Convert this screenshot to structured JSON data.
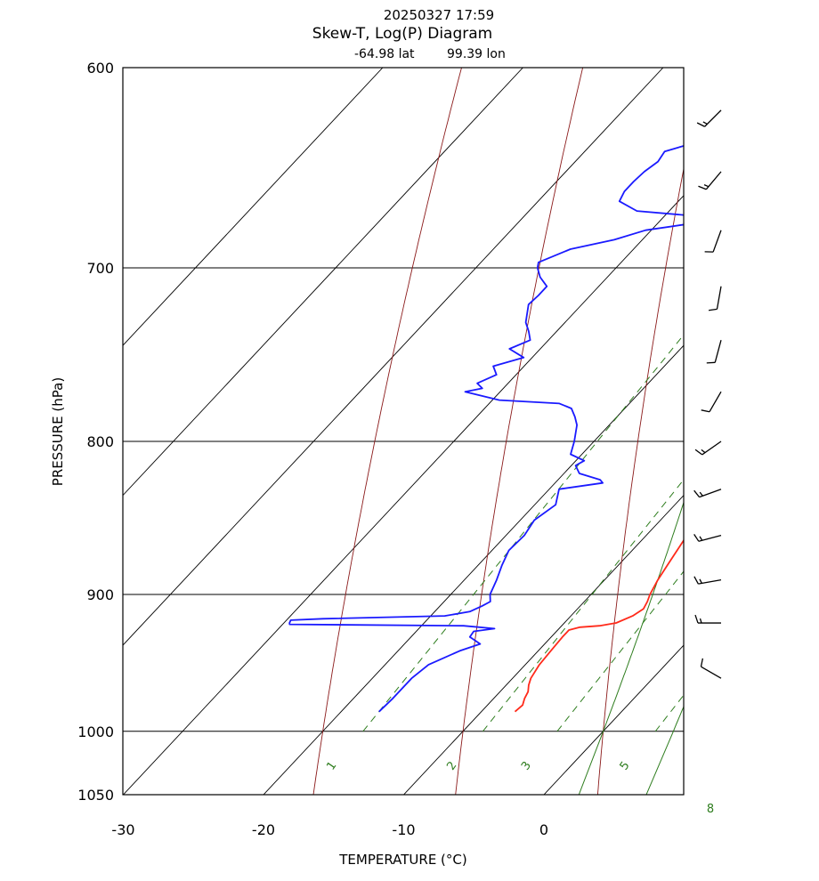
{
  "header": {
    "datetime": "20250327 17:59",
    "title": "Skew-T, Log(P) Diagram",
    "lat_text": "-64.98 lat",
    "lon_text": "99.39 lon"
  },
  "colors": {
    "temperature": "#ff2a1a",
    "dewpoint": "#1a1aff",
    "isotherm": "#000000",
    "dry_adiabat": "#8b1a1a",
    "moist_adiabat": "#2e7d1e",
    "mixing_ratio": "#2e7d1e",
    "wind_barb": "#000000"
  },
  "chart_data": {
    "type": "line",
    "title": "Skew-T, Log(P) Diagram",
    "xlabel": "TEMPERATURE (°C)",
    "ylabel": "PRESSURE  (hPa)",
    "x_ticks": [
      "-30",
      "-20",
      "-10",
      "0"
    ],
    "x_tick_values": [
      -30,
      -20,
      -10,
      0
    ],
    "y_ticks": [
      "600",
      "700",
      "800",
      "900",
      "1000",
      "1050"
    ],
    "y_tick_values": [
      600,
      700,
      800,
      900,
      1000,
      1050
    ],
    "xlim": [
      -30,
      10
    ],
    "ylim": [
      1050,
      600
    ],
    "y_scale": "log",
    "mixing_ratio_labels": [
      "1",
      "2",
      "3",
      "5",
      "8"
    ],
    "mixing_ratio_values": [
      1,
      2,
      3,
      5,
      8
    ],
    "isotherms": [
      -60,
      -50,
      -40,
      -30,
      -20,
      -10,
      0,
      10,
      20
    ],
    "dry_adiabats": [
      -20,
      -10,
      0,
      10,
      20,
      30,
      40,
      50
    ],
    "moist_adiabats": [
      0,
      5,
      10
    ],
    "series": [
      {
        "name": "temperature",
        "pressure": [
          985,
          980,
          975,
          970,
          965,
          960,
          950,
          940,
          930,
          925,
          923,
          922,
          920,
          915,
          910,
          905,
          900,
          890,
          880,
          870,
          860,
          850,
          840,
          830,
          826,
          822,
          815,
          808,
          800,
          790,
          780,
          770,
          760,
          750,
          740,
          730,
          720,
          710,
          700,
          690,
          680,
          670,
          660,
          650,
          640,
          630,
          620,
          610,
          600
        ],
        "values": [
          -7.6,
          -7.5,
          -7.8,
          -8.0,
          -8.4,
          -8.7,
          -9.0,
          -9.1,
          -9.2,
          -9.2,
          -8.6,
          -7.3,
          -6.3,
          -5.6,
          -5.3,
          -5.5,
          -5.8,
          -6.2,
          -6.5,
          -6.8,
          -7.1,
          -7.5,
          -7.9,
          -8.3,
          -8.0,
          -8.0,
          -7.5,
          -7.4,
          -7.5,
          -7.8,
          -8.2,
          -8.7,
          -9.2,
          -9.7,
          -10.2,
          -10.8,
          -11.3,
          -11.8,
          -12.2,
          -12.7,
          -13.1,
          -13.6,
          -14.1,
          -14.5,
          -14.9,
          -15.3,
          -15.6,
          -16.0,
          -16.4
        ]
      },
      {
        "name": "dewpoint",
        "pressure": [
          985,
          975,
          960,
          950,
          940,
          935,
          930,
          926,
          924,
          922,
          921,
          920,
          918,
          917,
          915,
          912,
          908,
          905,
          900,
          890,
          880,
          870,
          860,
          850,
          840,
          830,
          826,
          824,
          820,
          815,
          812,
          808,
          800,
          790,
          785,
          780,
          777,
          775,
          770,
          768,
          765,
          760,
          755,
          750,
          745,
          740,
          735,
          730,
          720,
          715,
          710,
          705,
          700,
          697,
          690,
          685,
          680,
          677,
          674,
          672,
          670,
          665,
          660,
          655,
          650,
          645,
          640,
          630,
          625,
          620,
          610,
          600
        ],
        "values": [
          -17.3,
          -17.2,
          -17.2,
          -16.9,
          -15.6,
          -14.6,
          -15.8,
          -15.9,
          -14.6,
          -17.0,
          -29.5,
          -29.6,
          -29.7,
          -27.5,
          -19.0,
          -17.5,
          -17.0,
          -16.7,
          -17.2,
          -17.7,
          -18.3,
          -18.8,
          -18.7,
          -19.0,
          -18.5,
          -19.3,
          -16.6,
          -17.0,
          -18.9,
          -19.7,
          -19.4,
          -20.8,
          -21.4,
          -22.3,
          -23.0,
          -23.8,
          -25.0,
          -29.5,
          -32.5,
          -31.5,
          -32.2,
          -31.4,
          -32.2,
          -30.6,
          -32.2,
          -31.3,
          -32.0,
          -32.8,
          -33.8,
          -33.7,
          -33.7,
          -34.8,
          -35.6,
          -35.9,
          -34.5,
          -32.0,
          -30.4,
          -28.0,
          -24.6,
          -28.8,
          -32.3,
          -34.2,
          -34.5,
          -34.5,
          -34.4,
          -34.1,
          -34.3,
          -30.7,
          -30.0,
          -27.8,
          -26.5,
          -24.7
        ]
      }
    ],
    "wind_barbs": [
      {
        "pressure": 620,
        "speed_kt": 15,
        "direction_deg": 225
      },
      {
        "pressure": 650,
        "speed_kt": 15,
        "direction_deg": 220
      },
      {
        "pressure": 680,
        "speed_kt": 10,
        "direction_deg": 200
      },
      {
        "pressure": 710,
        "speed_kt": 10,
        "direction_deg": 190
      },
      {
        "pressure": 740,
        "speed_kt": 10,
        "direction_deg": 195
      },
      {
        "pressure": 770,
        "speed_kt": 10,
        "direction_deg": 210
      },
      {
        "pressure": 800,
        "speed_kt": 15,
        "direction_deg": 235
      },
      {
        "pressure": 830,
        "speed_kt": 15,
        "direction_deg": 250
      },
      {
        "pressure": 860,
        "speed_kt": 15,
        "direction_deg": 255
      },
      {
        "pressure": 890,
        "speed_kt": 15,
        "direction_deg": 260
      },
      {
        "pressure": 920,
        "speed_kt": 15,
        "direction_deg": 270
      },
      {
        "pressure": 960,
        "speed_kt": 10,
        "direction_deg": 300
      }
    ]
  }
}
